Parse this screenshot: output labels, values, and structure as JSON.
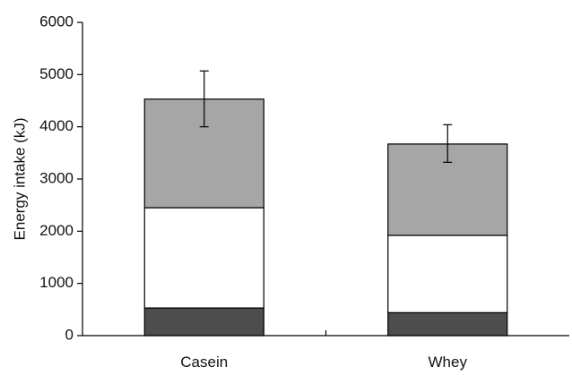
{
  "chart_data": {
    "type": "bar",
    "stacked": true,
    "title": "",
    "xlabel": "",
    "ylabel": "Energy intake (kJ)",
    "ylim": [
      0,
      6000
    ],
    "yticks": [
      0,
      1000,
      2000,
      3000,
      4000,
      5000,
      6000
    ],
    "categories": [
      "Casein",
      "Whey"
    ],
    "series": [
      {
        "color": "#4d4d4d",
        "values": [
          530,
          440
        ]
      },
      {
        "color": "#ffffff",
        "values": [
          1920,
          1480
        ]
      },
      {
        "color": "#a6a6a6",
        "values": [
          2080,
          1750
        ]
      }
    ],
    "totals": [
      4530,
      3670
    ],
    "error_upper": [
      5070,
      4040
    ],
    "error_lower": [
      4000,
      3320
    ],
    "grid": false,
    "legend": "none"
  }
}
